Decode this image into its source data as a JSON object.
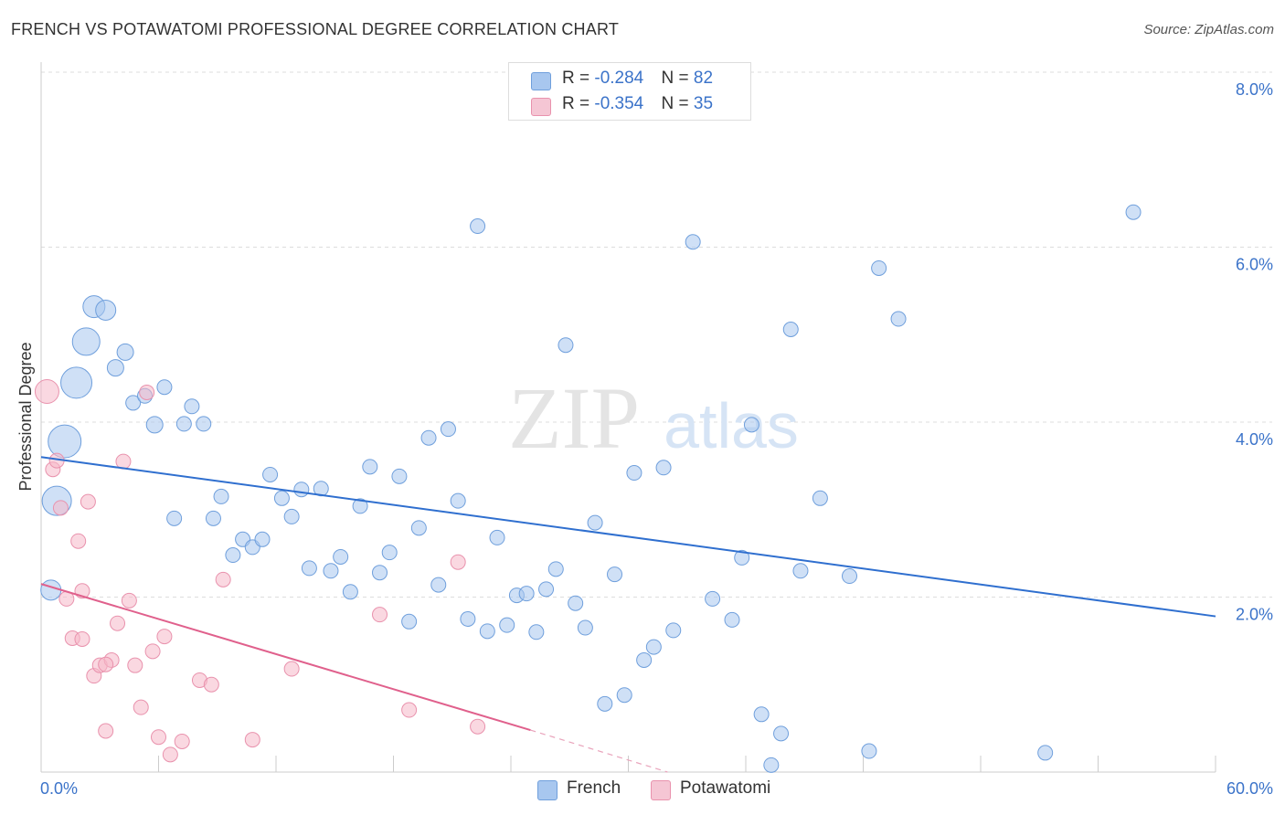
{
  "title": "FRENCH VS POTAWATOMI PROFESSIONAL DEGREE CORRELATION CHART",
  "source": "Source: ZipAtlas.com",
  "watermark": {
    "zip": "ZIP",
    "atlas": "atlas"
  },
  "legend": {
    "french": {
      "r_label": "R = ",
      "r_value": "-0.284",
      "n_label": "N = ",
      "n_value": "82",
      "color": "#a8c7ef"
    },
    "potawatomi": {
      "r_label": "R = ",
      "r_value": "-0.354",
      "n_label": "N = ",
      "n_value": "35",
      "color": "#f5b8c9"
    }
  },
  "bottom_legend": {
    "french": "French",
    "potawatomi": "Potawatomi"
  },
  "chart_data": {
    "type": "scatter",
    "title": "FRENCH VS POTAWATOMI PROFESSIONAL DEGREE CORRELATION CHART",
    "xlabel": "",
    "ylabel": "Professional Degree",
    "xlim": [
      0,
      60
    ],
    "ylim": [
      0,
      8.0
    ],
    "x_tick_labels": [
      "0.0%",
      "60.0%"
    ],
    "y_ticks": [
      2.0,
      4.0,
      6.0,
      8.0
    ],
    "y_tick_labels": [
      "2.0%",
      "4.0%",
      "6.0%",
      "8.0%"
    ],
    "grid": true,
    "series": [
      {
        "name": "French",
        "color": "#a8c7ef",
        "edge": "#6f9fdc",
        "trend": {
          "x": [
            0,
            60
          ],
          "y": [
            3.6,
            1.78
          ],
          "color": "#2f6fcf"
        },
        "points": [
          [
            0.5,
            2.08,
            11
          ],
          [
            0.8,
            3.1,
            16
          ],
          [
            1.2,
            3.78,
            18
          ],
          [
            1.8,
            4.45,
            17
          ],
          [
            2.3,
            4.92,
            15
          ],
          [
            2.7,
            5.32,
            12
          ],
          [
            3.3,
            5.28,
            11
          ],
          [
            3.8,
            4.62,
            9
          ],
          [
            4.3,
            4.8,
            9
          ],
          [
            4.7,
            4.22,
            8
          ],
          [
            5.3,
            4.3,
            8
          ],
          [
            5.8,
            3.97,
            9
          ],
          [
            6.3,
            4.4,
            8
          ],
          [
            6.8,
            2.9,
            8
          ],
          [
            7.3,
            3.98,
            8
          ],
          [
            7.7,
            4.18,
            8
          ],
          [
            8.3,
            3.98,
            8
          ],
          [
            8.8,
            2.9,
            8
          ],
          [
            9.2,
            3.15,
            8
          ],
          [
            9.8,
            2.48,
            8
          ],
          [
            10.3,
            2.66,
            8
          ],
          [
            10.8,
            2.57,
            8
          ],
          [
            11.3,
            2.66,
            8
          ],
          [
            11.7,
            3.4,
            8
          ],
          [
            12.3,
            3.13,
            8
          ],
          [
            12.8,
            2.92,
            8
          ],
          [
            13.3,
            3.23,
            8
          ],
          [
            13.7,
            2.33,
            8
          ],
          [
            14.3,
            3.24,
            8
          ],
          [
            14.8,
            2.3,
            8
          ],
          [
            15.3,
            2.46,
            8
          ],
          [
            15.8,
            2.06,
            8
          ],
          [
            16.3,
            3.04,
            8
          ],
          [
            16.8,
            3.49,
            8
          ],
          [
            17.3,
            2.28,
            8
          ],
          [
            17.8,
            2.51,
            8
          ],
          [
            18.3,
            3.38,
            8
          ],
          [
            18.8,
            1.72,
            8
          ],
          [
            19.3,
            2.79,
            8
          ],
          [
            19.8,
            3.82,
            8
          ],
          [
            20.3,
            2.14,
            8
          ],
          [
            20.8,
            3.92,
            8
          ],
          [
            21.3,
            3.1,
            8
          ],
          [
            21.8,
            1.75,
            8
          ],
          [
            22.3,
            6.24,
            8
          ],
          [
            22.8,
            1.61,
            8
          ],
          [
            23.3,
            2.68,
            8
          ],
          [
            23.8,
            1.68,
            8
          ],
          [
            24.3,
            2.02,
            8
          ],
          [
            24.8,
            2.04,
            8
          ],
          [
            25.3,
            1.6,
            8
          ],
          [
            25.8,
            2.09,
            8
          ],
          [
            26.3,
            2.32,
            8
          ],
          [
            26.8,
            4.88,
            8
          ],
          [
            27.3,
            1.93,
            8
          ],
          [
            27.8,
            1.65,
            8
          ],
          [
            28.3,
            2.85,
            8
          ],
          [
            28.8,
            0.78,
            8
          ],
          [
            29.3,
            2.26,
            8
          ],
          [
            29.8,
            0.88,
            8
          ],
          [
            30.3,
            3.42,
            8
          ],
          [
            30.8,
            1.28,
            8
          ],
          [
            31.3,
            1.43,
            8
          ],
          [
            31.8,
            3.48,
            8
          ],
          [
            32.3,
            1.62,
            8
          ],
          [
            33.3,
            6.06,
            8
          ],
          [
            34.3,
            1.98,
            8
          ],
          [
            35.3,
            1.74,
            8
          ],
          [
            35.8,
            2.45,
            8
          ],
          [
            36.3,
            3.97,
            8
          ],
          [
            36.8,
            0.66,
            8
          ],
          [
            37.3,
            0.08,
            8
          ],
          [
            37.8,
            0.44,
            8
          ],
          [
            38.3,
            5.06,
            8
          ],
          [
            38.8,
            2.3,
            8
          ],
          [
            39.8,
            3.13,
            8
          ],
          [
            41.3,
            2.24,
            8
          ],
          [
            42.3,
            0.24,
            8
          ],
          [
            42.8,
            5.76,
            8
          ],
          [
            43.8,
            5.18,
            8
          ],
          [
            51.3,
            0.22,
            8
          ],
          [
            55.8,
            6.4,
            8
          ]
        ]
      },
      {
        "name": "Potawatomi",
        "color": "#f5b8c9",
        "edge": "#e992ad",
        "trend": {
          "x": [
            0,
            25
          ],
          "y": [
            2.15,
            0.48
          ],
          "dash_to": [
            32,
            0.0
          ],
          "color": "#e0608c"
        },
        "points": [
          [
            0.3,
            4.35,
            13
          ],
          [
            0.6,
            3.46,
            8
          ],
          [
            0.8,
            3.56,
            8
          ],
          [
            1.0,
            3.02,
            8
          ],
          [
            1.3,
            1.98,
            8
          ],
          [
            1.6,
            1.53,
            8
          ],
          [
            1.9,
            2.64,
            8
          ],
          [
            2.1,
            1.52,
            8
          ],
          [
            2.4,
            3.09,
            8
          ],
          [
            2.7,
            1.1,
            8
          ],
          [
            3.0,
            1.22,
            8
          ],
          [
            3.3,
            0.47,
            8
          ],
          [
            3.6,
            1.28,
            8
          ],
          [
            3.9,
            1.7,
            8
          ],
          [
            4.2,
            3.55,
            8
          ],
          [
            4.5,
            1.96,
            8
          ],
          [
            4.8,
            1.22,
            8
          ],
          [
            5.1,
            0.74,
            8
          ],
          [
            5.4,
            4.34,
            8
          ],
          [
            5.7,
            1.38,
            8
          ],
          [
            6.0,
            0.4,
            8
          ],
          [
            6.3,
            1.55,
            8
          ],
          [
            6.6,
            0.2,
            8
          ],
          [
            7.2,
            0.35,
            8
          ],
          [
            8.1,
            1.05,
            8
          ],
          [
            8.7,
            1.0,
            8
          ],
          [
            9.3,
            2.2,
            8
          ],
          [
            10.8,
            0.37,
            8
          ],
          [
            12.8,
            1.18,
            8
          ],
          [
            17.3,
            1.8,
            8
          ],
          [
            18.8,
            0.71,
            8
          ],
          [
            21.3,
            2.4,
            8
          ],
          [
            22.3,
            0.52,
            8
          ],
          [
            3.3,
            1.23,
            8
          ],
          [
            2.1,
            2.07,
            8
          ]
        ]
      }
    ]
  }
}
